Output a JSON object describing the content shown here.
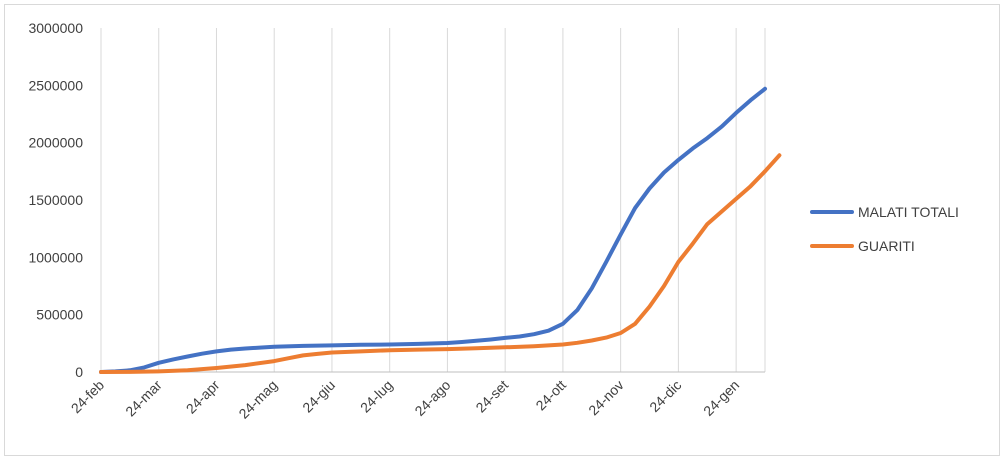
{
  "chart_data": {
    "type": "line",
    "title": "",
    "xlabel": "",
    "ylabel": "",
    "ylim": [
      0,
      3000000
    ],
    "yticks": [
      0,
      500000,
      1000000,
      1500000,
      2000000,
      2500000,
      3000000
    ],
    "ytick_labels": [
      "0",
      "500000",
      "1000000",
      "1500000",
      "2000000",
      "2500000",
      "3000000"
    ],
    "xtick_labels": [
      "24-feb",
      "24-mar",
      "24-apr",
      "24-mag",
      "24-giu",
      "24-lug",
      "24-ago",
      "24-set",
      "24-ott",
      "24-nov",
      "24-dic",
      "24-gen"
    ],
    "x_unit": "month index from 24-feb (0) to 24-gen (11)",
    "grid": {
      "vertical": true,
      "horizontal": false
    },
    "legend_position": "right",
    "series": [
      {
        "name": "MALATI TOTALI",
        "color": "#4472C4",
        "points": [
          [
            0,
            0
          ],
          [
            0.25,
            5000
          ],
          [
            0.5,
            15000
          ],
          [
            0.75,
            40000
          ],
          [
            1,
            80000
          ],
          [
            1.25,
            110000
          ],
          [
            1.5,
            135000
          ],
          [
            1.75,
            160000
          ],
          [
            2,
            180000
          ],
          [
            2.25,
            195000
          ],
          [
            2.5,
            205000
          ],
          [
            2.75,
            213000
          ],
          [
            3,
            220000
          ],
          [
            3.5,
            228000
          ],
          [
            4,
            232000
          ],
          [
            4.5,
            237000
          ],
          [
            5,
            240000
          ],
          [
            5.5,
            245000
          ],
          [
            6,
            253000
          ],
          [
            6.25,
            262000
          ],
          [
            6.5,
            272000
          ],
          [
            6.75,
            283000
          ],
          [
            7,
            297000
          ],
          [
            7.25,
            310000
          ],
          [
            7.5,
            330000
          ],
          [
            7.75,
            360000
          ],
          [
            8,
            420000
          ],
          [
            8.25,
            540000
          ],
          [
            8.5,
            730000
          ],
          [
            8.75,
            960000
          ],
          [
            9,
            1200000
          ],
          [
            9.25,
            1430000
          ],
          [
            9.5,
            1600000
          ],
          [
            9.75,
            1740000
          ],
          [
            10,
            1850000
          ],
          [
            10.25,
            1950000
          ],
          [
            10.5,
            2040000
          ],
          [
            10.75,
            2140000
          ],
          [
            11,
            2260000
          ],
          [
            11.25,
            2370000
          ],
          [
            11.5,
            2470000
          ]
        ]
      },
      {
        "name": "GUARITI",
        "color": "#ED7D31",
        "points": [
          [
            0,
            0
          ],
          [
            0.5,
            1000
          ],
          [
            1,
            5000
          ],
          [
            1.5,
            15000
          ],
          [
            2,
            35000
          ],
          [
            2.5,
            60000
          ],
          [
            3,
            95000
          ],
          [
            3.25,
            120000
          ],
          [
            3.5,
            145000
          ],
          [
            3.75,
            158000
          ],
          [
            4,
            170000
          ],
          [
            4.5,
            180000
          ],
          [
            5,
            190000
          ],
          [
            5.5,
            195000
          ],
          [
            6,
            200000
          ],
          [
            6.5,
            207000
          ],
          [
            7,
            215000
          ],
          [
            7.5,
            225000
          ],
          [
            8,
            240000
          ],
          [
            8.25,
            255000
          ],
          [
            8.5,
            275000
          ],
          [
            8.75,
            300000
          ],
          [
            9,
            340000
          ],
          [
            9.25,
            420000
          ],
          [
            9.5,
            570000
          ],
          [
            9.75,
            750000
          ],
          [
            10,
            960000
          ],
          [
            10.25,
            1120000
          ],
          [
            10.5,
            1290000
          ],
          [
            10.75,
            1400000
          ],
          [
            11,
            1510000
          ],
          [
            11.25,
            1620000
          ],
          [
            11.5,
            1750000
          ],
          [
            11.75,
            1890000
          ]
        ]
      }
    ]
  }
}
